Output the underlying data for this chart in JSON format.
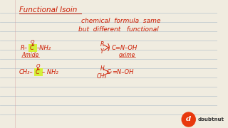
{
  "background_color": "#f0ece0",
  "line_color": "#b8c4cc",
  "text_color": "#cc1a00",
  "highlight_color": "#d4f03a",
  "title": "Functional Isoin",
  "line1": "chemical  formula  same",
  "line2": "but  different   functional",
  "logo_red": "#e8380d",
  "logo_text": "doubtnut"
}
